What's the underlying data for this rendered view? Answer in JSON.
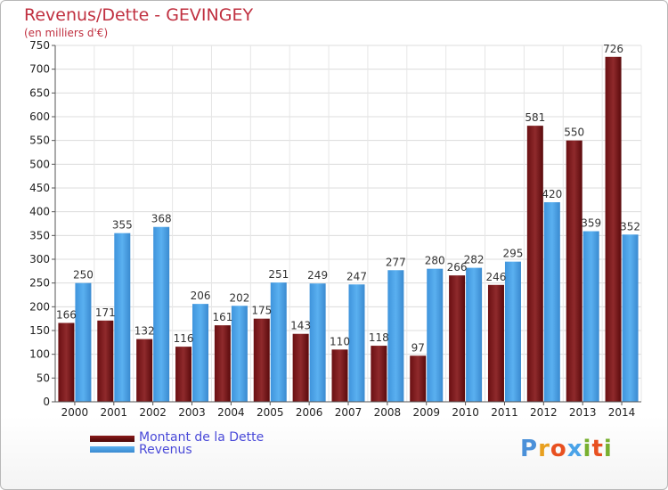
{
  "chart_data": {
    "type": "bar",
    "title": "Revenus/Dette - GEVINGEY",
    "subtitle": "(en milliers d'€)",
    "categories": [
      "2000",
      "2001",
      "2002",
      "2003",
      "2004",
      "2005",
      "2006",
      "2007",
      "2008",
      "2009",
      "2010",
      "2011",
      "2012",
      "2013",
      "2014"
    ],
    "series": [
      {
        "name": "Montant de la Dette",
        "color": "#8b1a1a",
        "values": [
          166,
          171,
          132,
          116,
          161,
          175,
          143,
          110,
          118,
          97,
          266,
          246,
          581,
          550,
          726
        ]
      },
      {
        "name": "Revenus",
        "color": "#4aa3e8",
        "values": [
          250,
          355,
          368,
          206,
          202,
          251,
          249,
          247,
          277,
          280,
          282,
          295,
          420,
          359,
          352
        ]
      }
    ],
    "ylim": [
      0,
      750
    ],
    "yticks": [
      0,
      50,
      100,
      150,
      200,
      250,
      300,
      350,
      400,
      450,
      500,
      550,
      600,
      650,
      700,
      750
    ],
    "grid": true,
    "legend_position": "bottom-left"
  },
  "logo": {
    "text": "Proxiti",
    "colors": [
      "#4a90d9",
      "#e8a020",
      "#e85020",
      "#4aa3e8",
      "#78b030",
      "#e85020",
      "#78b030"
    ]
  }
}
